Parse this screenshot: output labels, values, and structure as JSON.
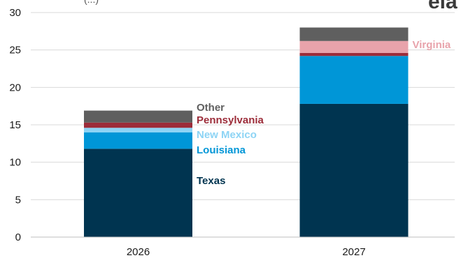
{
  "chart_data": {
    "type": "bar",
    "stacked": true,
    "categories": [
      "2026",
      "2027"
    ],
    "series": [
      {
        "name": "Texas",
        "values": [
          11.8,
          17.8
        ]
      },
      {
        "name": "Louisiana",
        "values": [
          2.2,
          6.4
        ]
      },
      {
        "name": "New Mexico",
        "values": [
          0.6,
          0
        ]
      },
      {
        "name": "Pennsylvania",
        "values": [
          0.7,
          0.4
        ]
      },
      {
        "name": "Virginia",
        "values": [
          0,
          1.6
        ]
      },
      {
        "name": "Other",
        "values": [
          1.6,
          1.8
        ]
      }
    ],
    "colors": {
      "Texas": "#003450",
      "Louisiana": "#0096d7",
      "New Mexico": "#8dd4f5",
      "Pennsylvania": "#9c2d3a",
      "Virginia": "#e8a3ab",
      "Other": "#5f5f5f"
    },
    "annotations": [
      {
        "text": "Other",
        "color": "#5f5f5f"
      },
      {
        "text": "Pennsylvania",
        "color": "#9c2d3a"
      },
      {
        "text": "New Mexico",
        "color": "#8dd4f5"
      },
      {
        "text": "Louisiana",
        "color": "#0096d7"
      },
      {
        "text": "Texas",
        "color": "#003450"
      },
      {
        "text": "Virginia",
        "color": "#e8a3ab"
      }
    ],
    "yticks": [
      "0",
      "5",
      "10",
      "15",
      "20",
      "25",
      "30"
    ],
    "ylim": [
      0,
      30
    ],
    "grid": true,
    "title": "",
    "xlabel": "",
    "ylabel": ""
  },
  "header": {
    "partial_text": "(...)",
    "logo_fragment": "eia"
  }
}
